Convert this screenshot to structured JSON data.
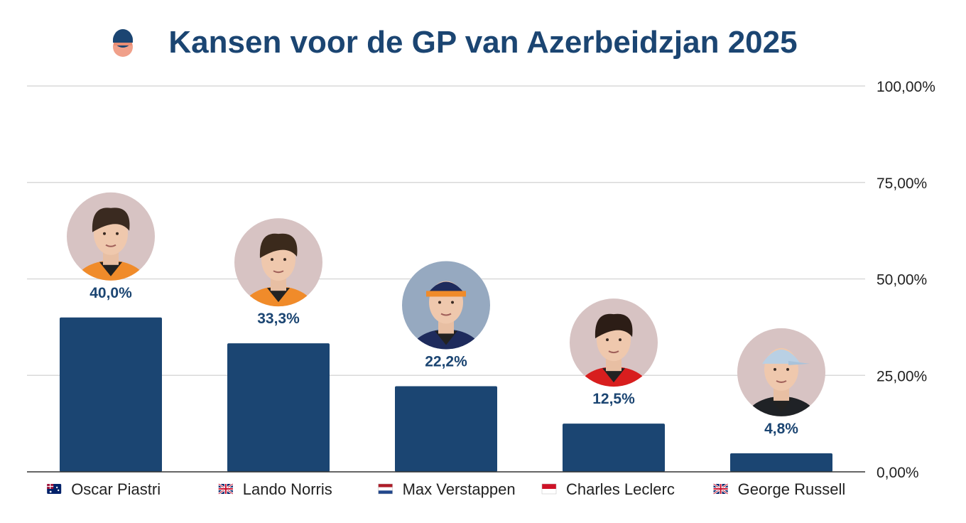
{
  "header": {
    "title": "Kansen voor de GP van Azerbeidzjan 2025",
    "logo_icon": "driver-helmet-icon"
  },
  "colors": {
    "title": "#1b4572",
    "bar": "#1b4572",
    "value_label": "#1b4572",
    "grid": "#d9d9d9",
    "axis": "#333333",
    "avatar_bg": "#d7c3c3",
    "avatar_bg_alt": "#96a9c0"
  },
  "chart_data": {
    "type": "bar",
    "title": "Kansen voor de GP van Azerbeidzjan 2025",
    "xlabel": "",
    "ylabel": "",
    "ylim": [
      0,
      100
    ],
    "yticks": [
      0,
      25,
      50,
      75,
      100
    ],
    "ytick_labels": [
      "0,00%",
      "25,00%",
      "50,00%",
      "75,00%",
      "100,00%"
    ],
    "y_axis_position": "right",
    "grid": true,
    "categories": [
      "Oscar Piastri",
      "Lando Norris",
      "Max Verstappen",
      "Charles Leclerc",
      "George Russell"
    ],
    "values": [
      40.0,
      33.3,
      22.2,
      12.5,
      4.8
    ],
    "value_labels": [
      "40,0%",
      "33,3%",
      "22,2%",
      "12,5%",
      "4,8%"
    ],
    "flags": [
      "flag-australia-icon",
      "flag-uk-icon",
      "flag-netherlands-icon",
      "flag-monaco-icon",
      "flag-uk-icon"
    ],
    "avatars": [
      "driver-photo-piastri",
      "driver-photo-norris",
      "driver-photo-verstappen",
      "driver-photo-leclerc",
      "driver-photo-russell"
    ]
  }
}
